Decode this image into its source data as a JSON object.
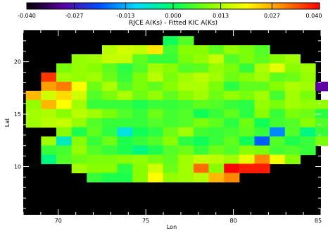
{
  "chart_data": {
    "type": "heatmap",
    "title": "RJCE A(Ks) - Fitted KIC A(Ks)",
    "xlabel": "Lon",
    "ylabel": "Lat",
    "xlim": [
      68,
      85
    ],
    "ylim": [
      5.4,
      23
    ],
    "xticks": [
      70,
      75,
      80,
      85
    ],
    "yticks": [
      10,
      15,
      20
    ],
    "colorbar": {
      "range": [
        -0.04,
        0.04
      ],
      "ticks": [
        -0.04,
        -0.027,
        -0.013,
        0.0,
        0.013,
        0.027,
        0.04
      ],
      "tick_labels": [
        "-0.040",
        "-0.027",
        "-0.013",
        "0.000",
        "0.013",
        "0.027",
        "0.040"
      ],
      "colormap": [
        "#000000",
        "#5a00a0",
        "#0050ff",
        "#00dcff",
        "#00ff60",
        "#88ff00",
        "#ffff00",
        "#ff8800",
        "#ff0000"
      ],
      "position": "top"
    },
    "background_color": "#000000",
    "cell_size_deg": 0.87,
    "grid_origin_lon": 68.15,
    "grid_origin_lat": 22.45,
    "cell_rows": [
      {
        "row": 0,
        "start_col": 9,
        "values": [
          0.001,
          0.006
        ]
      },
      {
        "row": 1,
        "start_col": 5,
        "values": [
          0.014,
          0.016,
          0.015,
          0.022,
          0.005,
          0.01,
          0.01,
          0.007,
          0.011,
          0.009,
          0.006
        ]
      },
      {
        "row": 2,
        "start_col": 3,
        "values": [
          0.011,
          0.012,
          0.015,
          0.015,
          0.007,
          0.004,
          0.004,
          0.009,
          0.011,
          0.015,
          0.006,
          0.009,
          0.007,
          0.01,
          0.012
        ]
      },
      {
        "row": 3,
        "start_col": 2,
        "values": [
          0.009,
          0.011,
          0.01,
          0.007,
          0.003,
          0.006,
          0.012,
          0.01,
          0.006,
          0.007,
          0.011,
          0.009,
          0.004,
          0.013,
          0.018,
          0.01,
          0.012
        ]
      },
      {
        "row": 4,
        "start_col": 0,
        "values": [
          null,
          0.036,
          0.012,
          0.011,
          0.012,
          0.008,
          0.004,
          0.009,
          0.014,
          0.009,
          0.012,
          0.014,
          0.012,
          0.008,
          0.01,
          0.012,
          0.007,
          0.008,
          0.011
        ]
      },
      {
        "row": 5,
        "start_col": 0,
        "values": [
          null,
          0.028,
          0.031,
          0.02,
          0.008,
          0.013,
          0.006,
          0.009,
          0.007,
          0.01,
          0.013,
          0.013,
          0.009,
          0.003,
          0.007,
          0.007,
          0.01,
          0.013,
          0.012,
          -0.03
        ]
      },
      {
        "row": 6,
        "start_col": 0,
        "values": [
          0.026,
          0.016,
          0.023,
          0.016,
          0.006,
          0.009,
          0.013,
          0.008,
          0.011,
          0.007,
          0.01,
          0.012,
          0.008,
          0.011,
          0.009,
          0.012,
          0.005,
          0.012,
          0.009
        ]
      },
      {
        "row": 7,
        "start_col": 0,
        "values": [
          0.011,
          0.026,
          0.02,
          0.012,
          0.004,
          0.004,
          0.004,
          0.002,
          0.004,
          0.004,
          0.005,
          0.007,
          0.006,
          0.004,
          0.003,
          0.011,
          0.009,
          0.012,
          0.011,
          0.011
        ]
      },
      {
        "row": 8,
        "start_col": 0,
        "values": [
          0.012,
          0.013,
          0.01,
          0.014,
          0.012,
          0.009,
          0.006,
          0.004,
          0.008,
          0.005,
          0.006,
          0.001,
          0.004,
          0.007,
          0.003,
          0.01,
          0.004,
          0.009,
          0.008,
          0.003,
          0.004,
          0.006
        ]
      },
      {
        "row": 9,
        "start_col": 0,
        "values": [
          0.012,
          0.014,
          0.015,
          0.011,
          0.006,
          0.004,
          0.004,
          0.004,
          0.006,
          0.005,
          0.006,
          0.009,
          0.007,
          0.003,
          0.008,
          0.001,
          0.005,
          0.006,
          0.01,
          0.006,
          0.004,
          0.006
        ]
      },
      {
        "row": 10,
        "start_col": 2,
        "values": [
          0.01,
          0.002,
          0.007,
          0.003,
          -0.008,
          0.001,
          0.003,
          0.008,
          0.012,
          0.005,
          0.004,
          0.005,
          0.007,
          0.004,
          -0.016,
          0.006,
          -0.002,
          0.004
        ]
      },
      {
        "row": 11,
        "start_col": 1,
        "values": [
          0.012,
          -0.006,
          0.01,
          0.004,
          0.008,
          0.002,
          0.004,
          0.006,
          0.01,
          0.003,
          0.001,
          0.004,
          0.007,
          0.001,
          -0.019,
          0.006,
          0.002,
          0.004,
          0.009
        ]
      },
      {
        "row": 12,
        "start_col": 1,
        "values": [
          0.004,
          0.005,
          0.011,
          0.006,
          0.004,
          0.002,
          -0.002,
          0.002,
          0.006,
          0.008,
          0.004,
          0.008,
          0.006,
          0.01,
          0.009,
          0.005,
          0.006,
          0.004
        ]
      },
      {
        "row": 13,
        "start_col": 1,
        "values": [
          -0.002,
          0.006,
          0.008,
          0.009,
          0.009,
          0.01,
          0.011,
          0.009,
          0.007,
          0.012,
          0.015,
          0.014,
          0.012,
          0.018,
          0.03,
          0.019,
          0.01
        ]
      },
      {
        "row": 14,
        "start_col": 3,
        "values": [
          0.012,
          0.01,
          0.01,
          0.003,
          0.01,
          0.016,
          0.008,
          0.012,
          0.032,
          0.01,
          0.04,
          0.038,
          0.038
        ]
      },
      {
        "row": 15,
        "start_col": 4,
        "values": [
          0.004,
          0.002,
          0.002,
          0.01,
          0.02,
          0.011,
          0.012,
          0.014,
          0.026,
          0.03
        ]
      }
    ]
  }
}
